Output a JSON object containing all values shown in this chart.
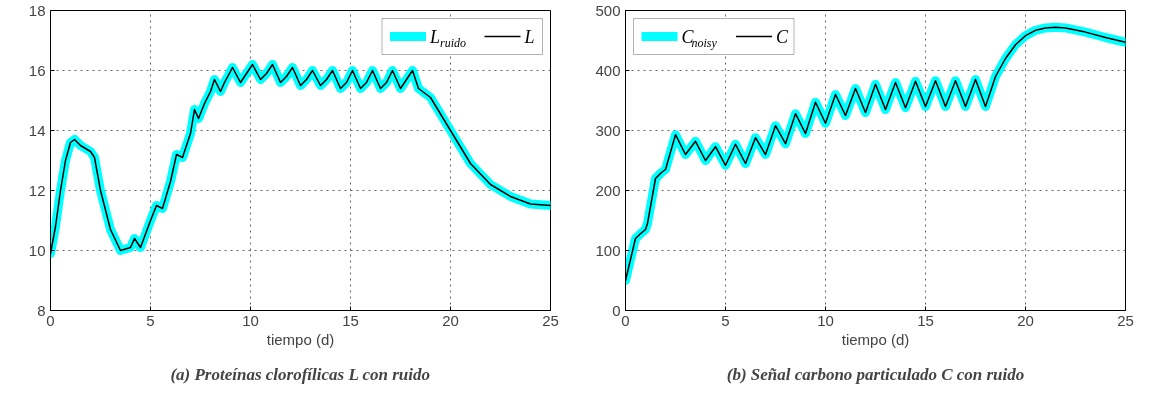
{
  "chart_data": [
    {
      "type": "line",
      "xlabel": "tiempo (d)",
      "xlim": [
        0,
        25
      ],
      "ylim": [
        8,
        18
      ],
      "xticks": [
        0,
        5,
        10,
        15,
        20,
        25
      ],
      "yticks": [
        8,
        10,
        12,
        14,
        16,
        18
      ],
      "grid": true,
      "legend": "top right",
      "line_style": "solid",
      "marker": "none",
      "annotations": [
        "(a) Proteínas clorofílicas L con ruido"
      ],
      "x": [
        0,
        0.25,
        0.5,
        0.75,
        1.0,
        1.2,
        1.5,
        2.0,
        2.2,
        2.5,
        3.0,
        3.5,
        4.0,
        4.2,
        4.5,
        5.0,
        5.3,
        5.6,
        6.0,
        6.3,
        6.6,
        7.0,
        7.2,
        7.4,
        7.7,
        8.0,
        8.2,
        8.5,
        8.7,
        9.1,
        9.5,
        9.8,
        10.1,
        10.5,
        10.8,
        11.1,
        11.5,
        11.8,
        12.1,
        12.5,
        12.8,
        13.1,
        13.5,
        13.8,
        14.1,
        14.5,
        14.8,
        15.1,
        15.5,
        15.8,
        16.1,
        16.5,
        16.8,
        17.1,
        17.5,
        17.8,
        18.1,
        18.4,
        19.0,
        20.0,
        21.0,
        22.0,
        23.0,
        24.0,
        25.0
      ],
      "series": [
        {
          "name": "L$_{ruido}$",
          "color": "#00ffff",
          "values": [
            9.9,
            10.8,
            12.0,
            13.0,
            13.6,
            13.7,
            13.5,
            13.3,
            13.1,
            12.0,
            10.7,
            10.0,
            10.1,
            10.4,
            10.1,
            11.0,
            11.5,
            11.4,
            12.3,
            13.2,
            13.1,
            13.9,
            14.7,
            14.4,
            14.9,
            15.3,
            15.7,
            15.3,
            15.6,
            16.1,
            15.6,
            15.9,
            16.2,
            15.7,
            15.9,
            16.2,
            15.6,
            15.8,
            16.1,
            15.5,
            15.7,
            16.0,
            15.5,
            15.7,
            16.0,
            15.4,
            15.6,
            16.0,
            15.4,
            15.6,
            16.0,
            15.4,
            15.6,
            16.0,
            15.4,
            15.7,
            16.0,
            15.4,
            15.1,
            14.0,
            12.9,
            12.2,
            11.8,
            11.55,
            11.5
          ]
        },
        {
          "name": "L",
          "color": "#000000",
          "values": [
            9.9,
            10.8,
            12.0,
            13.0,
            13.6,
            13.7,
            13.5,
            13.3,
            13.1,
            12.0,
            10.7,
            10.0,
            10.1,
            10.4,
            10.1,
            11.0,
            11.5,
            11.4,
            12.3,
            13.2,
            13.1,
            13.9,
            14.7,
            14.4,
            14.9,
            15.3,
            15.7,
            15.3,
            15.6,
            16.1,
            15.6,
            15.9,
            16.2,
            15.7,
            15.9,
            16.2,
            15.6,
            15.8,
            16.1,
            15.5,
            15.7,
            16.0,
            15.5,
            15.7,
            16.0,
            15.4,
            15.6,
            16.0,
            15.4,
            15.6,
            16.0,
            15.4,
            15.6,
            16.0,
            15.4,
            15.7,
            16.0,
            15.4,
            15.1,
            14.0,
            12.9,
            12.2,
            11.8,
            11.55,
            11.5
          ]
        }
      ]
    },
    {
      "type": "line",
      "xlabel": "tiempo (d)",
      "xlim": [
        0,
        25
      ],
      "ylim": [
        0,
        500
      ],
      "xticks": [
        0,
        5,
        10,
        15,
        20,
        25
      ],
      "yticks": [
        0,
        100,
        200,
        300,
        400,
        500
      ],
      "grid": true,
      "legend": "top left",
      "line_style": "solid",
      "marker": "none",
      "annotations": [
        "(b) Señal carbono particulado C con ruido"
      ],
      "x": [
        0,
        0.25,
        0.5,
        0.75,
        1.0,
        1.1,
        1.5,
        1.8,
        2.0,
        2.5,
        3.0,
        3.5,
        4.0,
        4.5,
        5.0,
        5.5,
        6.0,
        6.5,
        7.0,
        7.5,
        8.0,
        8.5,
        9.0,
        9.5,
        10.0,
        10.5,
        11.0,
        11.5,
        12.0,
        12.5,
        13.0,
        13.5,
        14.0,
        14.5,
        15.0,
        15.5,
        16.0,
        16.5,
        17.0,
        17.5,
        18.0,
        18.5,
        19.0,
        19.5,
        20.0,
        20.5,
        21.0,
        21.5,
        22.0,
        23.0,
        24.0,
        25.0
      ],
      "series": [
        {
          "name": "C$_{noisy}$",
          "color": "#00ffff",
          "values": [
            50,
            85,
            120,
            128,
            135,
            145,
            220,
            230,
            235,
            293,
            260,
            282,
            250,
            273,
            242,
            277,
            245,
            288,
            260,
            308,
            278,
            328,
            295,
            347,
            312,
            360,
            325,
            370,
            330,
            377,
            335,
            380,
            338,
            382,
            340,
            383,
            340,
            383,
            340,
            385,
            340,
            390,
            420,
            443,
            458,
            467,
            471,
            472,
            471,
            464,
            455,
            447
          ]
        },
        {
          "name": "C",
          "color": "#000000",
          "values": [
            50,
            85,
            120,
            128,
            135,
            145,
            220,
            230,
            235,
            293,
            260,
            282,
            250,
            273,
            242,
            277,
            245,
            288,
            260,
            308,
            278,
            328,
            295,
            347,
            312,
            360,
            325,
            370,
            330,
            377,
            335,
            380,
            338,
            382,
            340,
            383,
            340,
            383,
            340,
            385,
            340,
            390,
            420,
            443,
            458,
            467,
            471,
            472,
            471,
            464,
            455,
            447
          ]
        }
      ]
    }
  ]
}
